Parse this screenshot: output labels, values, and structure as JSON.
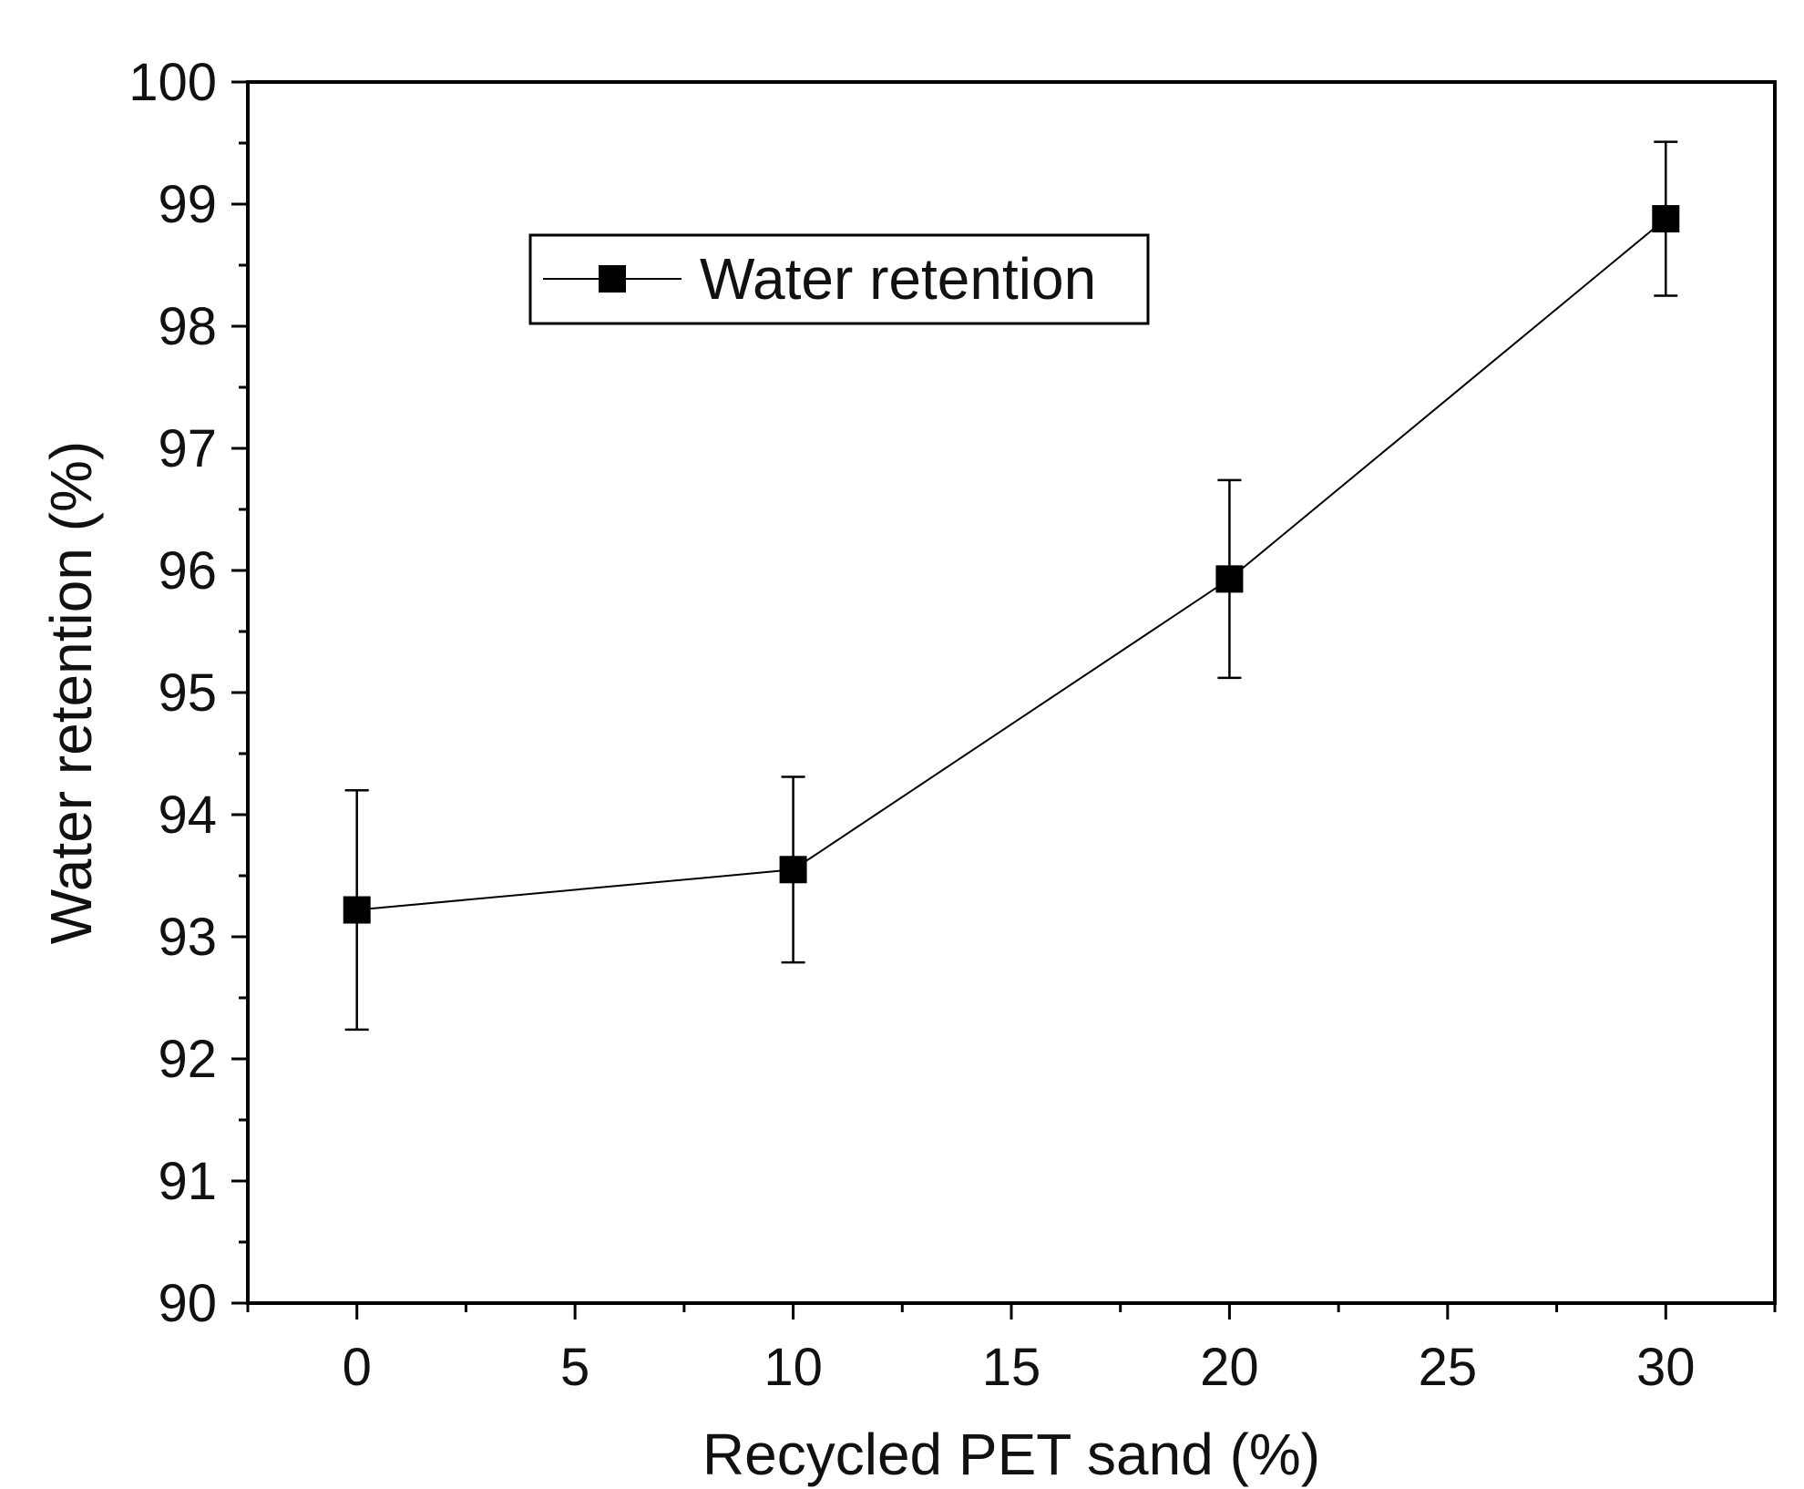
{
  "chart_data": {
    "type": "line",
    "title": "",
    "xlabel": "Recycled PET sand (%)",
    "ylabel": "Water retention (%)",
    "xlim": [
      -2.5,
      32.5
    ],
    "ylim": [
      90,
      100
    ],
    "x_ticks": [
      0,
      5,
      10,
      15,
      20,
      25,
      30
    ],
    "x_tick_labels": [
      "0",
      "5",
      "10",
      "15",
      "20",
      "25",
      "30"
    ],
    "y_ticks": [
      90,
      91,
      92,
      93,
      94,
      95,
      96,
      97,
      98,
      99,
      100
    ],
    "y_tick_labels": [
      "90",
      "91",
      "92",
      "93",
      "94",
      "95",
      "96",
      "97",
      "98",
      "99",
      "100"
    ],
    "grid": false,
    "legend_position": "top-left",
    "series": [
      {
        "name": "Water retention",
        "marker": "square",
        "color": "#000000",
        "x": [
          0,
          10,
          20,
          30
        ],
        "values": [
          93.22,
          93.55,
          95.93,
          98.88
        ],
        "error": [
          0.98,
          0.76,
          0.81,
          0.63
        ]
      }
    ]
  }
}
